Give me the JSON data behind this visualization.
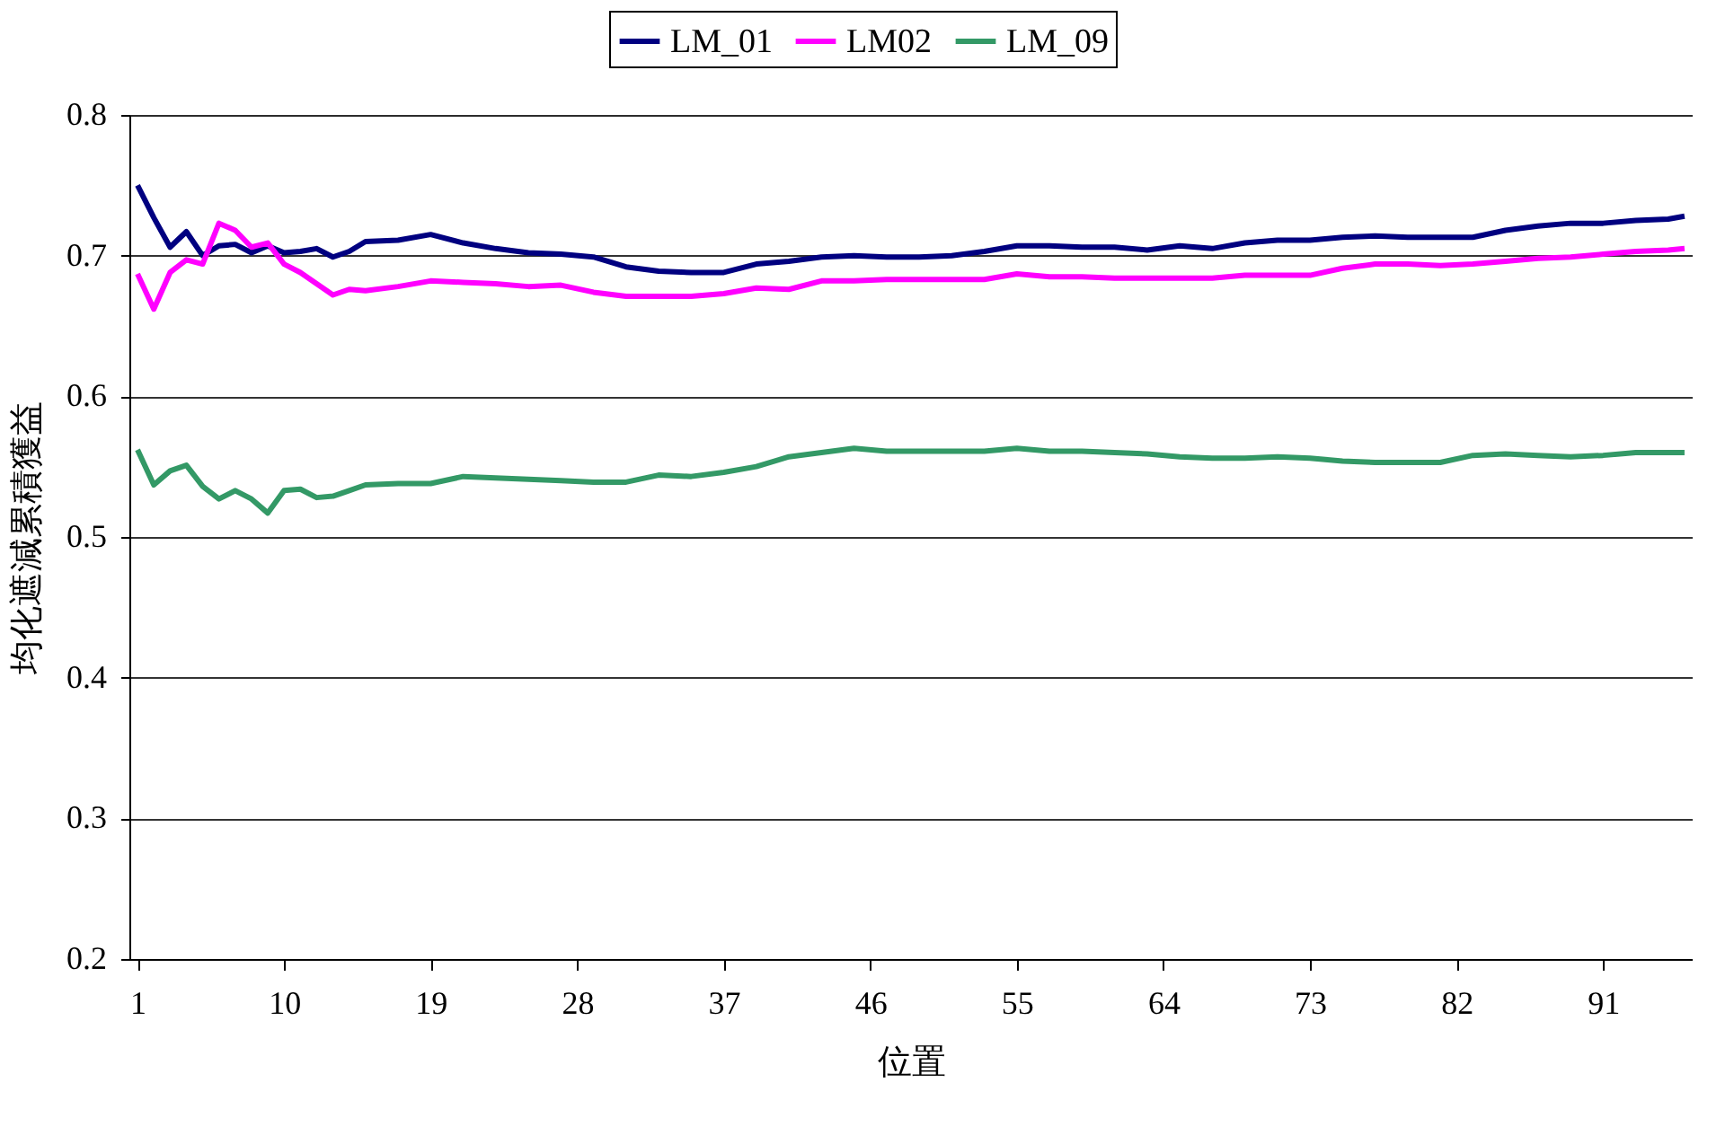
{
  "chart_data": {
    "type": "line",
    "xlabel": "位置",
    "ylabel": "均化遮減累積獲益",
    "x": [
      1,
      2,
      3,
      4,
      5,
      6,
      7,
      8,
      9,
      10,
      11,
      12,
      13,
      14,
      15,
      17,
      19,
      21,
      23,
      25,
      27,
      29,
      31,
      33,
      35,
      37,
      39,
      41,
      43,
      45,
      47,
      49,
      51,
      53,
      55,
      57,
      59,
      61,
      63,
      65,
      67,
      69,
      71,
      73,
      75,
      77,
      79,
      81,
      83,
      85,
      87,
      89,
      91,
      93,
      95,
      96
    ],
    "series": [
      {
        "name": "LM_01",
        "color": "#000080",
        "values": [
          0.75,
          0.727,
          0.706,
          0.717,
          0.7,
          0.707,
          0.708,
          0.702,
          0.707,
          0.702,
          0.703,
          0.705,
          0.699,
          0.703,
          0.71,
          0.711,
          0.715,
          0.709,
          0.705,
          0.702,
          0.701,
          0.699,
          0.692,
          0.689,
          0.688,
          0.688,
          0.694,
          0.696,
          0.699,
          0.7,
          0.699,
          0.699,
          0.7,
          0.703,
          0.707,
          0.707,
          0.706,
          0.706,
          0.704,
          0.707,
          0.705,
          0.709,
          0.711,
          0.711,
          0.713,
          0.714,
          0.713,
          0.713,
          0.713,
          0.718,
          0.721,
          0.723,
          0.723,
          0.725,
          0.726,
          0.728
        ]
      },
      {
        "name": "LM02",
        "color": "#ff00ff",
        "values": [
          0.687,
          0.662,
          0.688,
          0.697,
          0.694,
          0.723,
          0.718,
          0.706,
          0.709,
          0.694,
          0.688,
          0.68,
          0.672,
          0.676,
          0.675,
          0.678,
          0.682,
          0.681,
          0.68,
          0.678,
          0.679,
          0.674,
          0.671,
          0.671,
          0.671,
          0.673,
          0.677,
          0.676,
          0.682,
          0.682,
          0.683,
          0.683,
          0.683,
          0.683,
          0.687,
          0.685,
          0.685,
          0.684,
          0.684,
          0.684,
          0.684,
          0.686,
          0.686,
          0.686,
          0.691,
          0.694,
          0.694,
          0.693,
          0.694,
          0.696,
          0.698,
          0.699,
          0.701,
          0.703,
          0.704,
          0.705
        ]
      },
      {
        "name": "LM_09",
        "color": "#339966",
        "values": [
          0.562,
          0.537,
          0.547,
          0.551,
          0.536,
          0.527,
          0.533,
          0.527,
          0.517,
          0.533,
          0.534,
          0.528,
          0.529,
          0.533,
          0.537,
          0.538,
          0.538,
          0.543,
          0.542,
          0.541,
          0.54,
          0.539,
          0.539,
          0.544,
          0.543,
          0.546,
          0.55,
          0.557,
          0.56,
          0.563,
          0.561,
          0.561,
          0.561,
          0.561,
          0.563,
          0.561,
          0.561,
          0.56,
          0.559,
          0.557,
          0.556,
          0.556,
          0.557,
          0.556,
          0.554,
          0.553,
          0.553,
          0.553,
          0.558,
          0.559,
          0.558,
          0.557,
          0.558,
          0.56,
          0.56,
          0.56
        ]
      }
    ],
    "xlim": [
      0.5,
      96.5
    ],
    "xticks": [
      1,
      10,
      19,
      28,
      37,
      46,
      55,
      64,
      73,
      82,
      91
    ],
    "ylim": [
      0.2,
      0.8
    ],
    "yticks": [
      0.2,
      0.3,
      0.4,
      0.5,
      0.6,
      0.7,
      0.8
    ],
    "grid": "y",
    "legend": "top",
    "marker": "none",
    "line_style": "solid"
  }
}
